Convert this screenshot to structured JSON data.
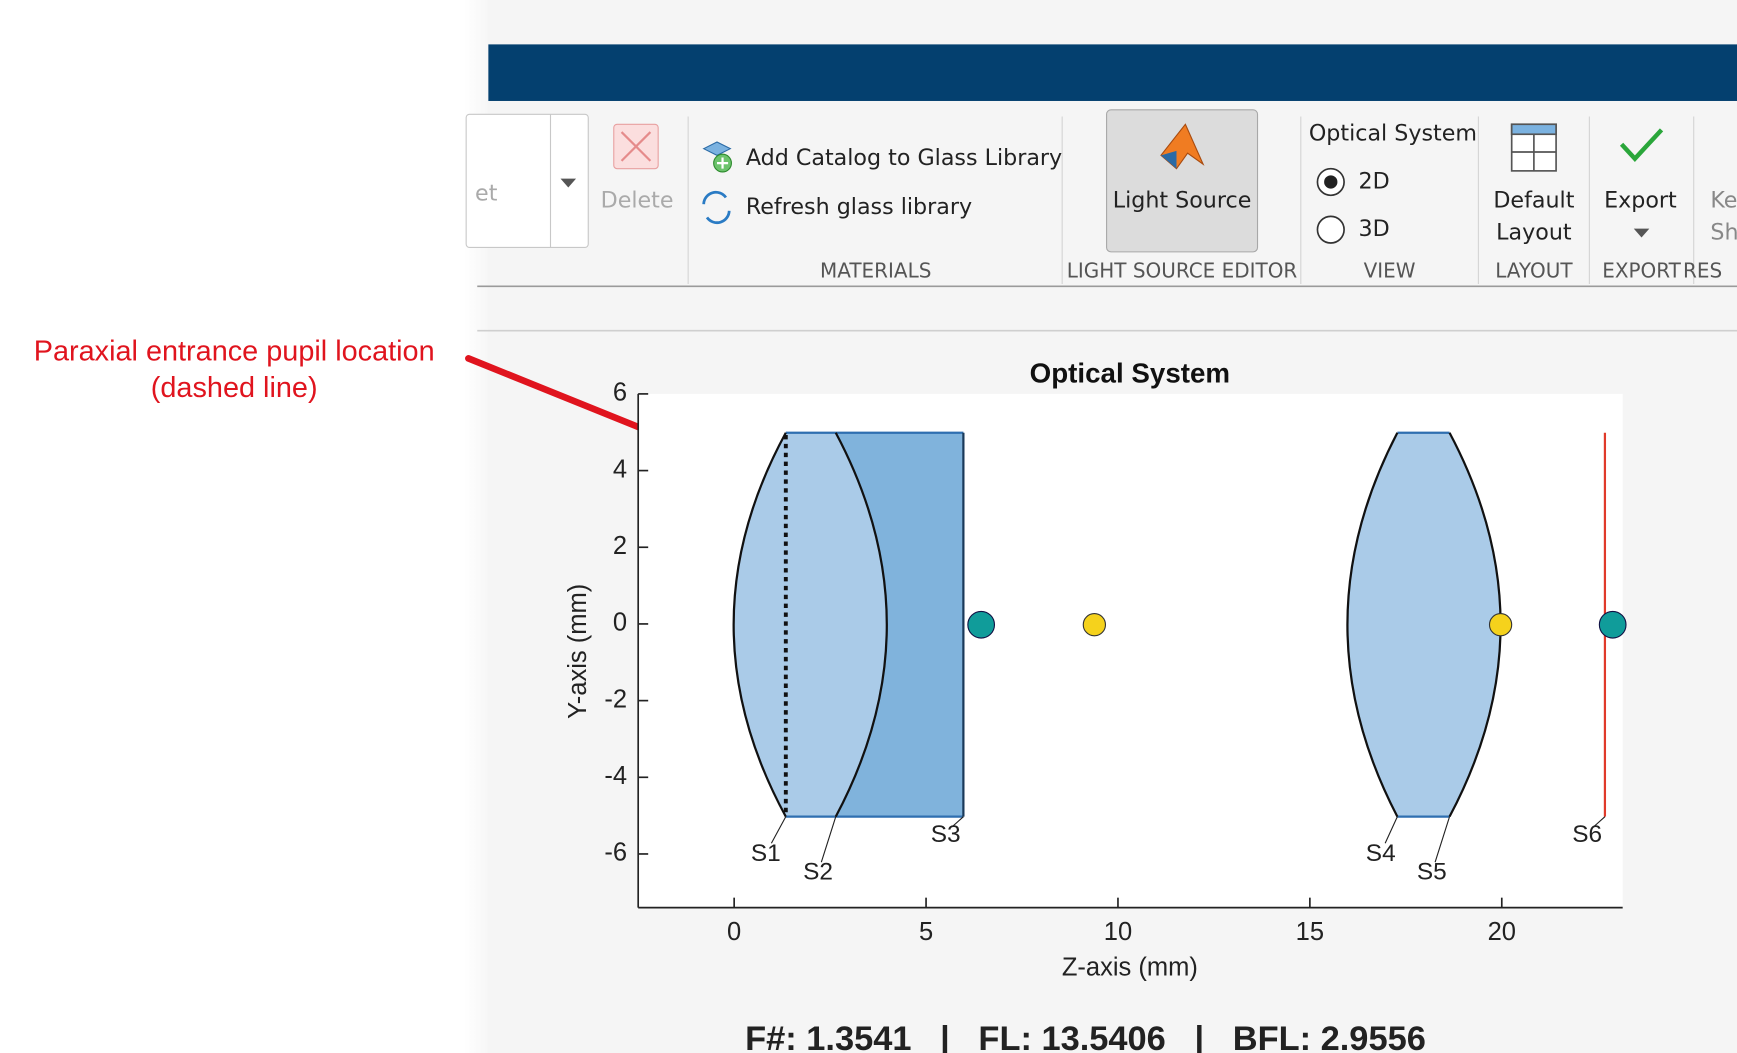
{
  "toolstrip": {
    "truncated": [
      "et",
      "Ke",
      "Sh",
      "RES"
    ],
    "delete": "Delete",
    "materials": {
      "add_catalog": "Add Catalog to Glass Library",
      "refresh": "Refresh glass library",
      "label": "MATERIALS"
    },
    "light_source": {
      "button": "Light Source",
      "label": "LIGHT SOURCE EDITOR"
    },
    "view": {
      "title": "Optical System",
      "options": [
        "2D",
        "3D"
      ],
      "label": "VIEW"
    },
    "layout": {
      "button": [
        "Default",
        "Layout"
      ],
      "label": "LAYOUT"
    },
    "export": {
      "button": "Export",
      "label": "EXPORT"
    }
  },
  "annotation": [
    "Paraxial entrance pupil location",
    "(dashed line)"
  ],
  "plot": {
    "title": "Optical System",
    "xlabel": "Z-axis (mm)",
    "ylabel": "Y-axis (mm)",
    "xlim": [
      -2.5,
      23.15
    ],
    "ylim": [
      -7.4,
      6
    ],
    "xticks": [
      0,
      5,
      10,
      15,
      20
    ],
    "yticks": [
      6,
      4,
      2,
      0,
      -2,
      -4,
      -6
    ],
    "surface_labels": [
      "S1",
      "S2",
      "S3",
      "S4",
      "S5",
      "S6"
    ]
  },
  "summary": "F#: 1.3541   |   FL: 13.5406   |   BFL: 2.9556"
}
